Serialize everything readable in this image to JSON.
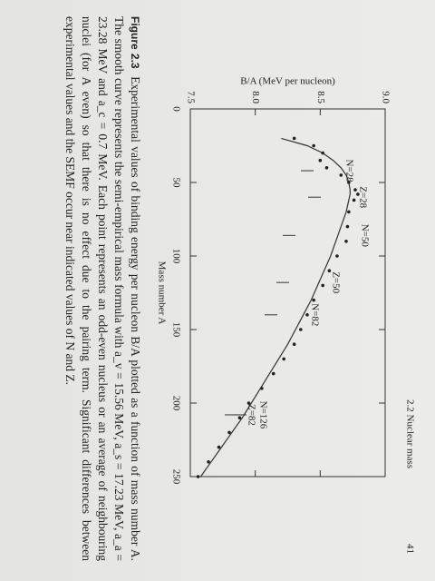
{
  "header": {
    "section": "2.2 Nuclear mass",
    "page": "41"
  },
  "chart_data": {
    "type": "line",
    "y_label": "B/A (MeV per nucleon)",
    "x_label": "Mass number A",
    "x": [
      20,
      25,
      30,
      35,
      40,
      45,
      50,
      55,
      58,
      62,
      70,
      80,
      90,
      100,
      110,
      120,
      130,
      140,
      150,
      160,
      170,
      180,
      190,
      200,
      210,
      220,
      230,
      240,
      250
    ],
    "series": [
      {
        "name": "Experimental",
        "color": "#222222",
        "values": [
          8.3,
          8.45,
          8.52,
          8.5,
          8.55,
          8.66,
          8.72,
          8.77,
          8.79,
          8.76,
          8.72,
          8.71,
          8.7,
          8.63,
          8.57,
          8.52,
          8.45,
          8.4,
          8.35,
          8.3,
          8.22,
          8.14,
          8.05,
          7.95,
          7.88,
          7.8,
          7.72,
          7.64,
          7.56
        ]
      },
      {
        "name": "SEMF",
        "color": "#333333",
        "values": [
          8.2,
          8.4,
          8.52,
          8.6,
          8.66,
          8.7,
          8.72,
          8.73,
          8.73,
          8.72,
          8.7,
          8.66,
          8.62,
          8.58,
          8.53,
          8.48,
          8.43,
          8.37,
          8.31,
          8.25,
          8.18,
          8.11,
          8.04,
          7.97,
          7.9,
          7.82,
          7.74,
          7.66,
          7.58
        ]
      }
    ],
    "xlim": [
      0,
      250
    ],
    "xticks": [
      0,
      50,
      100,
      150,
      200,
      250
    ],
    "ylim": [
      7.5,
      9.0
    ],
    "yticks": [
      7.5,
      {
        "value": 8,
        "label": "8.0"
      },
      8.5,
      {
        "value": 9,
        "label": "9.0"
      }
    ],
    "annotations": [
      "N=28",
      "Z=28",
      "N=50",
      "Z=50",
      "N=82",
      "N=126",
      "Z=82"
    ]
  },
  "caption": {
    "label": "Figure 2.3",
    "text": "Experimental values of binding energy per nucleon B/A plotted as a function of mass number A. The smooth curve represents the semi-empirical mass formula with a_v = 15.56 MeV, a_s = 17.23 MeV, a_a = 23.28 MeV and a_c = 0.7 MeV. Each point represents an odd-even nucleus or an average of neighbouring nuclei (for A even) so that there is no effect due to the pairing term. Significant differences between experimental values and the SEMF occur near indicated values of N and Z."
  }
}
